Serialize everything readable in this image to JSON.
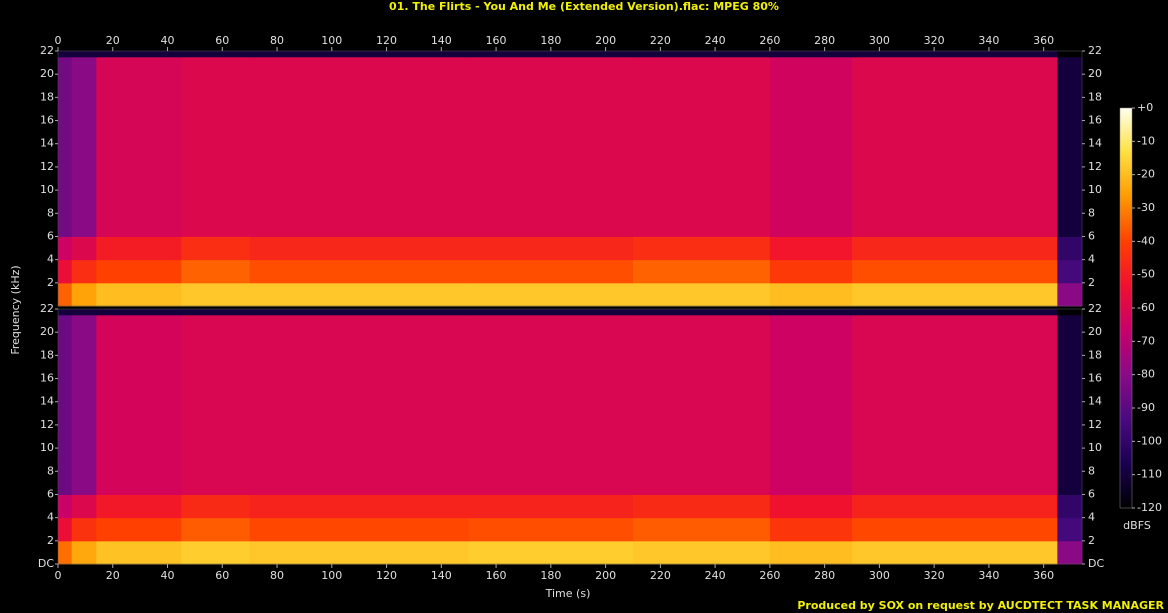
{
  "chart_data": {
    "type": "spectrogram",
    "title": "01. The Flirts - You And Me (Extended Version).flac: MPEG 80%",
    "x_label": "Time (s)",
    "y_label": "Frequency (kHz)",
    "colorbar_label": "dBFS",
    "footer": "Produced by SOX on request by AUCDTECT TASK MANAGER",
    "xlim": [
      0,
      374
    ],
    "xticks": [
      0,
      20,
      40,
      60,
      80,
      100,
      120,
      140,
      160,
      180,
      200,
      220,
      240,
      260,
      280,
      300,
      320,
      340,
      360
    ],
    "ylim": [
      0,
      22
    ],
    "zlim": [
      -120,
      0
    ],
    "zticks": [
      {
        "value": 0,
        "label": "+0"
      },
      -10,
      -20,
      -30,
      -40,
      -50,
      -60,
      -70,
      -80,
      -90,
      -100,
      -110,
      -120
    ],
    "colormap": [
      "#000000",
      "#1a0050",
      "#4a0a80",
      "#8a0a86",
      "#c8006a",
      "#f01030",
      "#ff4000",
      "#ff9a00",
      "#ffe040",
      "#fffff0"
    ],
    "time_edges": [
      0,
      5,
      14,
      45,
      70,
      150,
      210,
      260,
      290,
      365,
      374
    ],
    "freq_edges": [
      0,
      2,
      4,
      6,
      21.5,
      22
    ],
    "channels": [
      {
        "yticks": [
          2,
          4,
          6,
          8,
          10,
          12,
          14,
          16,
          18,
          20,
          22
        ],
        "z": [
          [
            -35,
            -25,
            -20,
            -18,
            -18,
            -18,
            -18,
            -20,
            -18,
            -80
          ],
          [
            -55,
            -45,
            -40,
            -35,
            -38,
            -38,
            -35,
            -42,
            -38,
            -95
          ],
          [
            -65,
            -60,
            -50,
            -45,
            -47,
            -47,
            -45,
            -52,
            -47,
            -100
          ],
          [
            -85,
            -80,
            -62,
            -60,
            -60,
            -60,
            -60,
            -64,
            -60,
            -110
          ],
          [
            -110,
            -110,
            -110,
            -110,
            -110,
            -110,
            -110,
            -110,
            -110,
            -120
          ]
        ]
      },
      {
        "yticks": [
          {
            "value": 0,
            "label": "DC"
          },
          2,
          4,
          6,
          8,
          10,
          12,
          14,
          16,
          18,
          20,
          22
        ],
        "z": [
          [
            -33,
            -24,
            -19,
            -17,
            -18,
            -17,
            -18,
            -20,
            -18,
            -80
          ],
          [
            -55,
            -44,
            -40,
            -36,
            -39,
            -38,
            -36,
            -43,
            -39,
            -95
          ],
          [
            -66,
            -60,
            -51,
            -46,
            -48,
            -48,
            -46,
            -53,
            -48,
            -100
          ],
          [
            -86,
            -80,
            -63,
            -61,
            -61,
            -61,
            -61,
            -65,
            -61,
            -110
          ],
          [
            -110,
            -110,
            -110,
            -110,
            -110,
            -110,
            -110,
            -110,
            -110,
            -120
          ]
        ]
      }
    ]
  }
}
